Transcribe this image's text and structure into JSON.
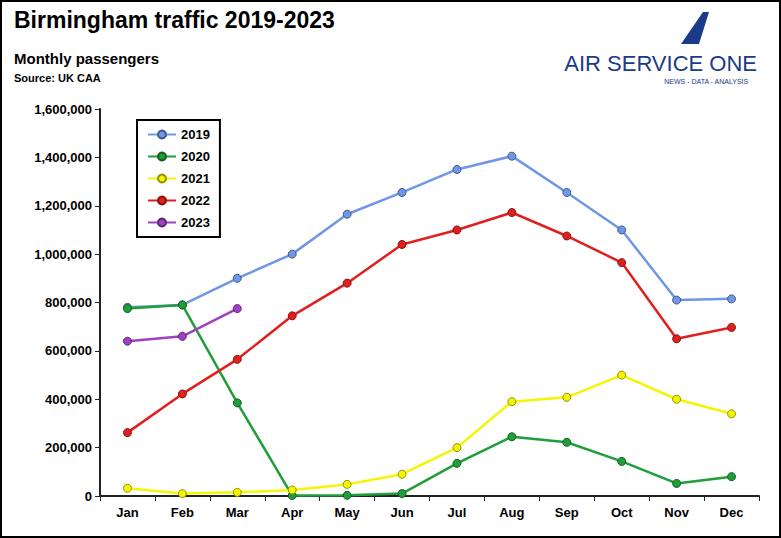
{
  "chart_data": {
    "type": "line",
    "title": "Birmingham traffic 2019-2023",
    "subtitle": "Monthly passengers",
    "source": "Source: UK CAA",
    "annotations": [
      "AIR SERVICE ONE",
      "NEWS - DATA - ANALYSIS"
    ],
    "categories": [
      "Jan",
      "Feb",
      "Mar",
      "Apr",
      "May",
      "Jun",
      "Jul",
      "Aug",
      "Sep",
      "Oct",
      "Nov",
      "Dec"
    ],
    "series": [
      {
        "name": "2019",
        "color": "#6f97e6",
        "values": [
          780000,
          790000,
          900000,
          1000000,
          1165000,
          1255000,
          1350000,
          1405000,
          1255000,
          1100000,
          810000,
          815000
        ]
      },
      {
        "name": "2020",
        "color": "#1f9e3a",
        "values": [
          775000,
          790000,
          385000,
          2000,
          3000,
          10000,
          135000,
          245000,
          222000,
          143000,
          52000,
          80000
        ]
      },
      {
        "name": "2021",
        "color": "#f5f500",
        "values": [
          32000,
          10000,
          15000,
          25000,
          48000,
          90000,
          200000,
          390000,
          408000,
          500000,
          400000,
          340000
        ]
      },
      {
        "name": "2022",
        "color": "#e0201f",
        "values": [
          262000,
          422000,
          565000,
          745000,
          880000,
          1040000,
          1100000,
          1172000,
          1075000,
          965000,
          650000,
          697000
        ]
      },
      {
        "name": "2023",
        "color": "#a040c0",
        "values": [
          640000,
          660000,
          775000,
          null,
          null,
          null,
          null,
          null,
          null,
          null,
          null,
          null
        ]
      }
    ],
    "ylim": [
      0,
      1600000
    ],
    "yticks": [
      0,
      {
        "value": 200000,
        "label": "200,000"
      },
      {
        "value": 400000,
        "label": "400,000"
      },
      {
        "value": 600000,
        "label": "600,000"
      },
      {
        "value": 800000,
        "label": "800,000"
      },
      {
        "value": 1000000,
        "label": "1,000,000"
      },
      {
        "value": 1200000,
        "label": "1,200,000"
      },
      {
        "value": 1400000,
        "label": "1,400,000"
      },
      {
        "value": 1600000,
        "label": "1,600,000"
      }
    ],
    "grid": false,
    "legend": "upper left",
    "marker": "circle"
  }
}
